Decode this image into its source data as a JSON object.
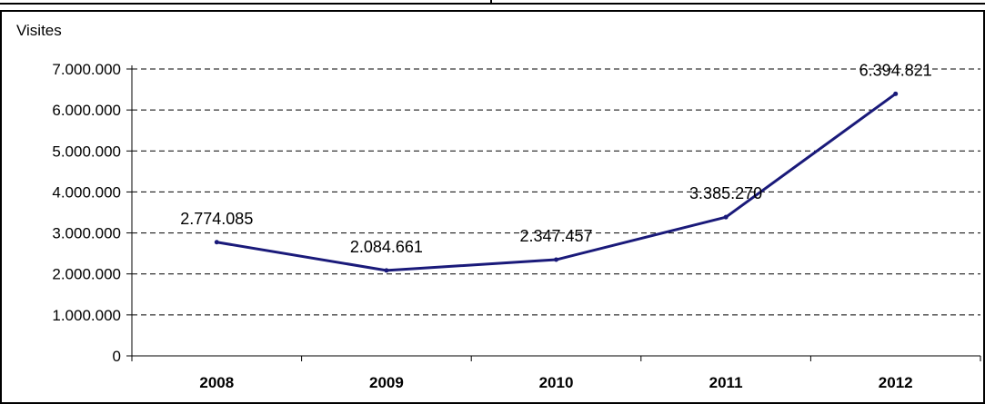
{
  "chart_data": {
    "type": "line",
    "title": "",
    "xlabel": "",
    "ylabel": "Visites",
    "categories": [
      "2008",
      "2009",
      "2010",
      "2011",
      "2012"
    ],
    "series": [
      {
        "values": [
          2774085,
          2084661,
          2347457,
          3385270,
          6394821
        ],
        "color": "#1a1a7a"
      }
    ],
    "data_labels": [
      "2.774.085",
      "2.084.661",
      "2.347.457",
      "3.385.270",
      "6.394.821"
    ],
    "ylim": [
      0,
      7000000
    ],
    "yticks": [
      0,
      1000000,
      2000000,
      3000000,
      4000000,
      5000000,
      6000000,
      7000000
    ],
    "ytick_labels": [
      "0",
      "1.000.000",
      "2.000.000",
      "3.000.000",
      "4.000.000",
      "5.000.000",
      "6.000.000",
      "7.000.000"
    ],
    "grid": true,
    "grid_style": "dashed",
    "legend": "none"
  }
}
